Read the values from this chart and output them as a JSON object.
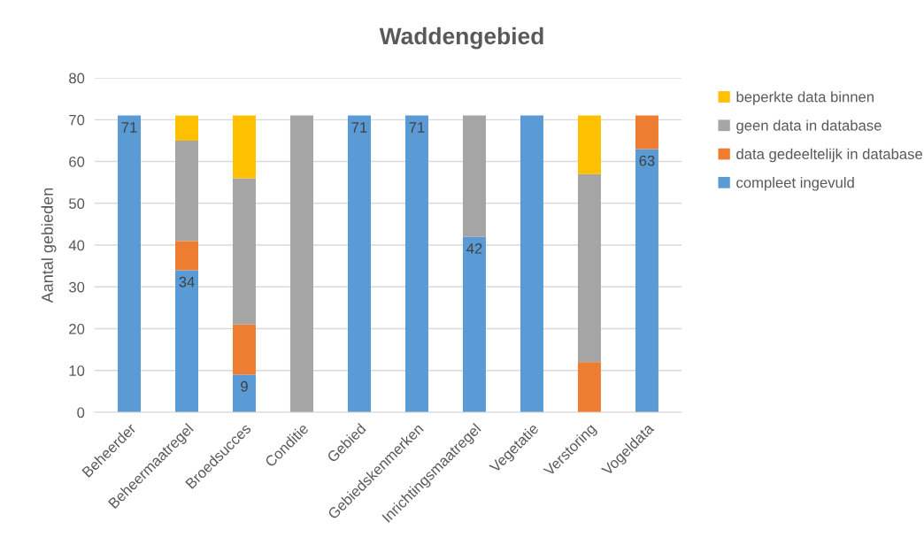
{
  "chart_data": {
    "type": "bar",
    "title": "Waddengebied",
    "ylabel": "Aantal gebieden",
    "categories": [
      "Beheerder",
      "Beheermaatregel",
      "Broedsucces",
      "Conditie",
      "Gebied",
      "Gebiedskenmerken",
      "Inrichtingsmaatregel",
      "Vegetatie",
      "Verstoring",
      "Vogeldata"
    ],
    "stacked": true,
    "series": [
      {
        "name": "compleet ingevuld",
        "color": "#5b9bd5",
        "values": [
          71,
          34,
          9,
          0,
          71,
          71,
          42,
          71,
          0,
          63
        ],
        "value_labels": [
          "71",
          "34",
          "9",
          null,
          "71",
          "71",
          "42",
          null,
          null,
          "63"
        ]
      },
      {
        "name": "data gedeeltelijk in database",
        "color": "#ed7d31",
        "values": [
          0,
          7,
          12,
          0,
          0,
          0,
          0,
          0,
          12,
          8
        ]
      },
      {
        "name": "geen data in database",
        "color": "#a5a5a5",
        "values": [
          0,
          24,
          35,
          71,
          0,
          0,
          29,
          0,
          45,
          0
        ]
      },
      {
        "name": "beperkte data binnen",
        "color": "#ffc000",
        "values": [
          0,
          6,
          15,
          0,
          0,
          0,
          0,
          0,
          14,
          0
        ]
      }
    ],
    "ylim": [
      0,
      80
    ],
    "yticks": [
      0,
      10,
      20,
      30,
      40,
      50,
      60,
      70,
      80
    ],
    "grid": "y",
    "legend": "right"
  }
}
